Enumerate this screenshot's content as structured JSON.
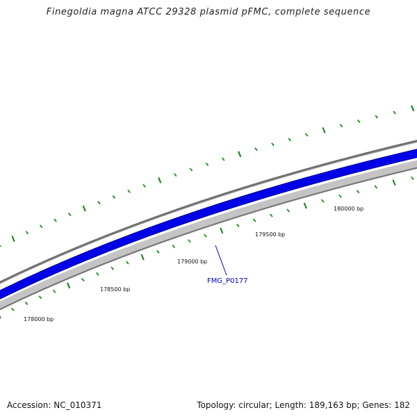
{
  "title": "Finegoldia magna ATCC 29328 plasmid pFMC, complete sequence",
  "footer": {
    "accession": "Accession: NC_010371",
    "summary": "Topology: circular; Length: 189,163 bp; Genes: 182"
  },
  "colors": {
    "outer_ring": "#7f7f7f",
    "gene_track": "#0000ee",
    "inner_ring": "#c8c8c8",
    "tick": "#1a8a1a",
    "gene_label": "#0000cc"
  },
  "scale_labels": [
    {
      "bp": 178000,
      "text": "178000 bp"
    },
    {
      "bp": 178500,
      "text": "178500 bp"
    },
    {
      "bp": 179000,
      "text": "179000 bp"
    },
    {
      "bp": 179500,
      "text": "179500 bp"
    },
    {
      "bp": 180000,
      "text": "180000 bp"
    }
  ],
  "gene": {
    "name": "FMG_P0177"
  }
}
